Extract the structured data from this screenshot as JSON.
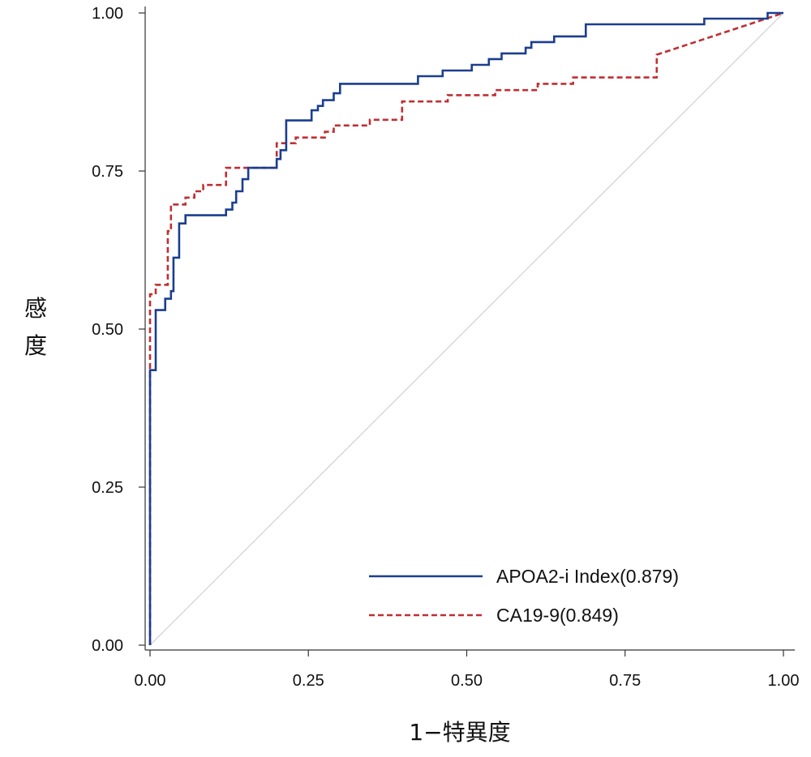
{
  "chart_data": {
    "type": "line",
    "xlabel": "1−特異度",
    "ylabel": "感度",
    "xlim": [
      0,
      1
    ],
    "ylim": [
      0,
      1
    ],
    "x_ticks": [
      "0.00",
      "0.25",
      "0.50",
      "0.75",
      "1.00"
    ],
    "y_ticks": [
      "0.00",
      "0.25",
      "0.50",
      "0.75",
      "1.00"
    ],
    "grid": false,
    "legend_position": "bottom-right",
    "reference_line": {
      "from": [
        0,
        0
      ],
      "to": [
        1,
        1
      ],
      "color": "#c8c8c8"
    },
    "series": [
      {
        "name": "APOA2-i Index(0.879)",
        "color": "#1b3e8f",
        "style": "solid",
        "points": [
          [
            0,
            0
          ],
          [
            0,
            0.435
          ],
          [
            0.009,
            0.435
          ],
          [
            0.009,
            0.53
          ],
          [
            0.024,
            0.53
          ],
          [
            0.024,
            0.548
          ],
          [
            0.033,
            0.548
          ],
          [
            0.033,
            0.56
          ],
          [
            0.037,
            0.56
          ],
          [
            0.037,
            0.613
          ],
          [
            0.046,
            0.613
          ],
          [
            0.046,
            0.667
          ],
          [
            0.056,
            0.667
          ],
          [
            0.056,
            0.68
          ],
          [
            0.12,
            0.68
          ],
          [
            0.12,
            0.689
          ],
          [
            0.13,
            0.689
          ],
          [
            0.13,
            0.7
          ],
          [
            0.136,
            0.7
          ],
          [
            0.136,
            0.718
          ],
          [
            0.146,
            0.718
          ],
          [
            0.146,
            0.737
          ],
          [
            0.155,
            0.737
          ],
          [
            0.155,
            0.755
          ],
          [
            0.2,
            0.755
          ],
          [
            0.2,
            0.769
          ],
          [
            0.206,
            0.769
          ],
          [
            0.206,
            0.783
          ],
          [
            0.215,
            0.783
          ],
          [
            0.215,
            0.83
          ],
          [
            0.255,
            0.83
          ],
          [
            0.255,
            0.846
          ],
          [
            0.265,
            0.846
          ],
          [
            0.265,
            0.853
          ],
          [
            0.273,
            0.853
          ],
          [
            0.273,
            0.862
          ],
          [
            0.29,
            0.862
          ],
          [
            0.29,
            0.873
          ],
          [
            0.3,
            0.873
          ],
          [
            0.3,
            0.888
          ],
          [
            0.423,
            0.888
          ],
          [
            0.423,
            0.9
          ],
          [
            0.462,
            0.9
          ],
          [
            0.462,
            0.909
          ],
          [
            0.508,
            0.909
          ],
          [
            0.508,
            0.918
          ],
          [
            0.535,
            0.918
          ],
          [
            0.535,
            0.927
          ],
          [
            0.555,
            0.927
          ],
          [
            0.555,
            0.936
          ],
          [
            0.593,
            0.936
          ],
          [
            0.593,
            0.945
          ],
          [
            0.602,
            0.945
          ],
          [
            0.602,
            0.954
          ],
          [
            0.638,
            0.954
          ],
          [
            0.638,
            0.963
          ],
          [
            0.688,
            0.963
          ],
          [
            0.688,
            0.982
          ],
          [
            0.875,
            0.982
          ],
          [
            0.875,
            0.991
          ],
          [
            0.975,
            0.991
          ],
          [
            0.975,
            1
          ],
          [
            1,
            1
          ]
        ]
      },
      {
        "name": "CA19-9(0.849)",
        "color": "#bf2f33",
        "style": "dashed",
        "points": [
          [
            0,
            0
          ],
          [
            0,
            0.555
          ],
          [
            0.009,
            0.555
          ],
          [
            0.009,
            0.57
          ],
          [
            0.028,
            0.57
          ],
          [
            0.028,
            0.655
          ],
          [
            0.033,
            0.655
          ],
          [
            0.033,
            0.697
          ],
          [
            0.056,
            0.697
          ],
          [
            0.056,
            0.708
          ],
          [
            0.07,
            0.708
          ],
          [
            0.07,
            0.718
          ],
          [
            0.084,
            0.718
          ],
          [
            0.084,
            0.728
          ],
          [
            0.12,
            0.728
          ],
          [
            0.12,
            0.755
          ],
          [
            0.2,
            0.755
          ],
          [
            0.2,
            0.794
          ],
          [
            0.23,
            0.794
          ],
          [
            0.23,
            0.803
          ],
          [
            0.276,
            0.803
          ],
          [
            0.276,
            0.812
          ],
          [
            0.29,
            0.812
          ],
          [
            0.29,
            0.822
          ],
          [
            0.347,
            0.822
          ],
          [
            0.347,
            0.831
          ],
          [
            0.398,
            0.831
          ],
          [
            0.398,
            0.86
          ],
          [
            0.47,
            0.86
          ],
          [
            0.47,
            0.87
          ],
          [
            0.545,
            0.87
          ],
          [
            0.545,
            0.878
          ],
          [
            0.612,
            0.878
          ],
          [
            0.612,
            0.888
          ],
          [
            0.668,
            0.888
          ],
          [
            0.668,
            0.898
          ],
          [
            0.8,
            0.898
          ],
          [
            0.8,
            0.934
          ],
          [
            1,
            1
          ]
        ]
      }
    ]
  }
}
